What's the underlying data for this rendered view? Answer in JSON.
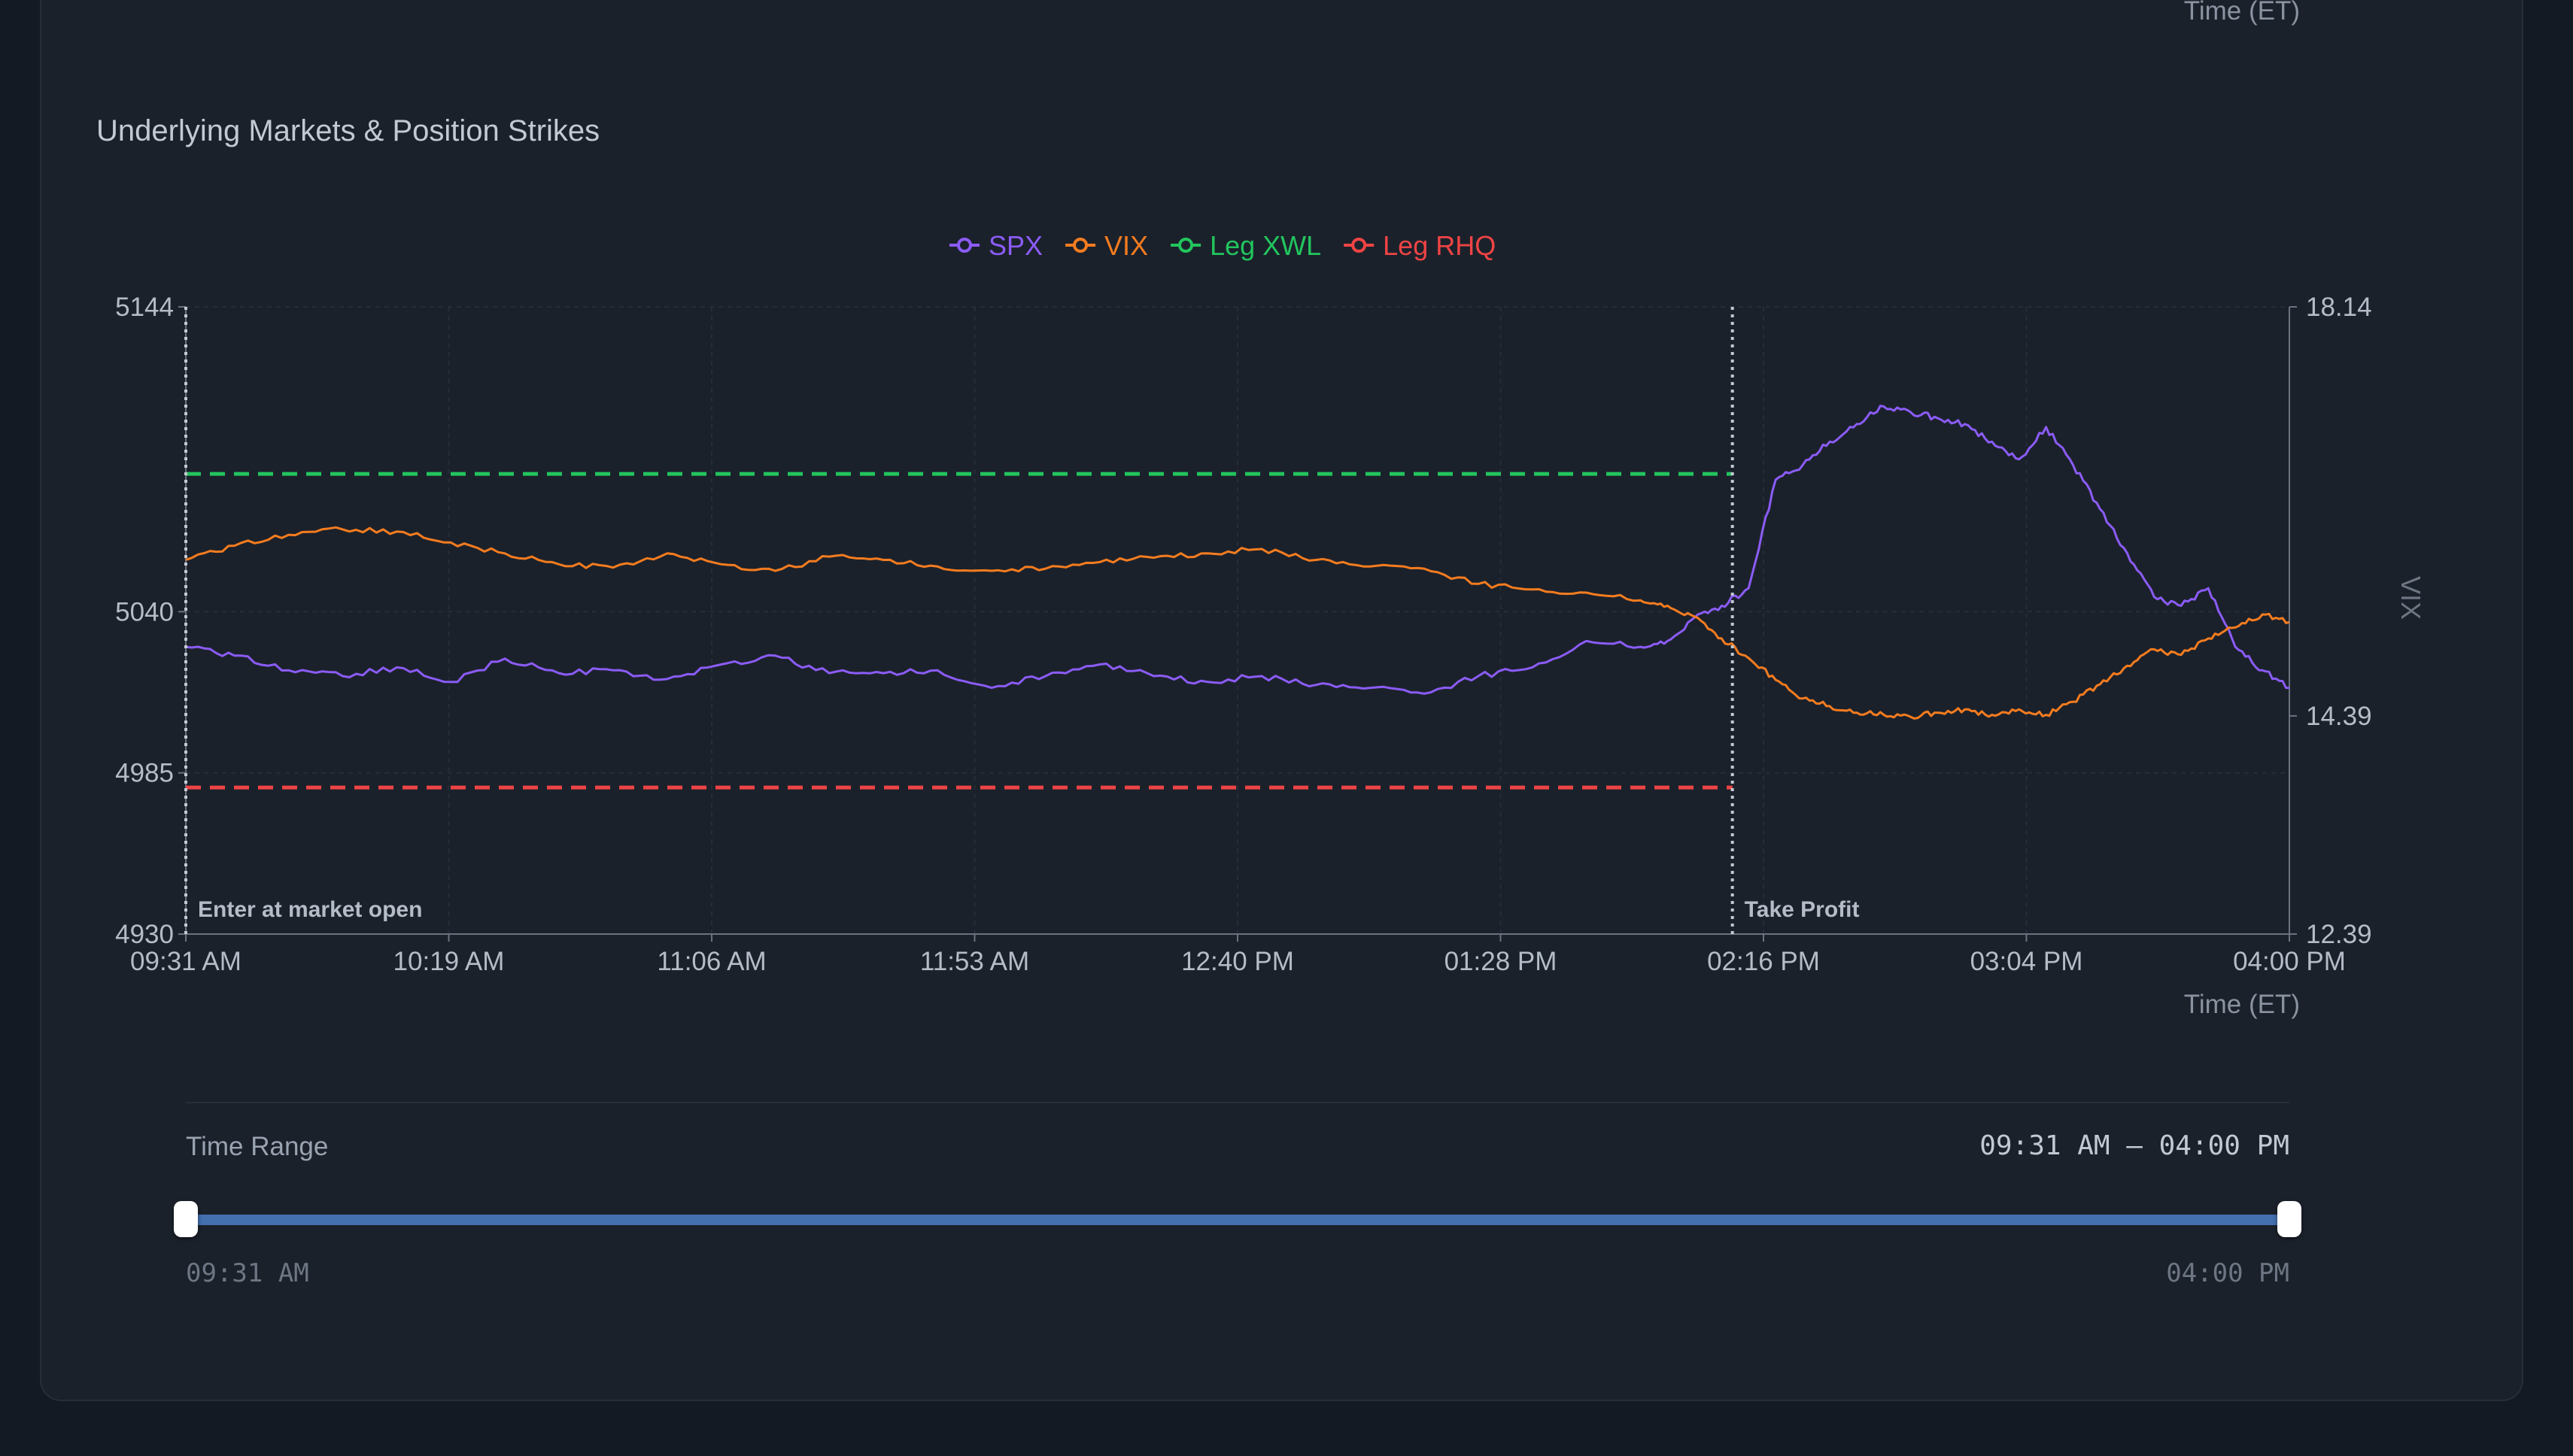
{
  "top_partial_axis_label": "Time (ET)",
  "chart_data": {
    "type": "line",
    "title": "Underlying Markets & Position Strikes",
    "xlabel": "Time (ET)",
    "ylabel_left": "",
    "ylabel_right": "VIX",
    "x_ticks": [
      "09:31 AM",
      "10:19 AM",
      "11:06 AM",
      "11:53 AM",
      "12:40 PM",
      "01:28 PM",
      "02:16 PM",
      "03:04 PM",
      "04:00 PM"
    ],
    "x_range_minutes": [
      571,
      960
    ],
    "y_left": {
      "ticks": [
        5144,
        5040,
        4985,
        4930
      ],
      "range": [
        4930,
        5144
      ]
    },
    "y_right": {
      "ticks": [
        18.14,
        14.39,
        12.39
      ],
      "range": [
        12.39,
        18.14
      ]
    },
    "legend": [
      {
        "name": "SPX",
        "color": "#8b5cf6"
      },
      {
        "name": "VIX",
        "color": "#f57c1f"
      },
      {
        "name": "Leg XWL",
        "color": "#22c55e"
      },
      {
        "name": "Leg RHQ",
        "color": "#ef4444"
      }
    ],
    "series": [
      {
        "name": "SPX",
        "axis": "left",
        "color": "#8b5cf6",
        "x": [
          571,
          580,
          590,
          600,
          610,
          620,
          630,
          640,
          650,
          660,
          670,
          680,
          690,
          700,
          710,
          720,
          730,
          740,
          750,
          760,
          770,
          780,
          790,
          800,
          810,
          820,
          830,
          840,
          845,
          850,
          855,
          860,
          865,
          870,
          875,
          880,
          885,
          890,
          895,
          900,
          905,
          910,
          915,
          920,
          925,
          930,
          935,
          940,
          945,
          950,
          955,
          960
        ],
        "values": [
          5028,
          5025,
          5020,
          5018,
          5021,
          5016,
          5024,
          5019,
          5020,
          5017,
          5022,
          5025,
          5019,
          5019,
          5020,
          5014,
          5018,
          5022,
          5018,
          5016,
          5018,
          5015,
          5014,
          5012,
          5018,
          5021,
          5030,
          5028,
          5030,
          5038,
          5042,
          5048,
          5085,
          5090,
          5098,
          5104,
          5110,
          5108,
          5106,
          5104,
          5098,
          5092,
          5103,
          5090,
          5075,
          5060,
          5045,
          5042,
          5048,
          5028,
          5020,
          5014
        ]
      },
      {
        "name": "VIX",
        "axis": "right",
        "color": "#f57c1f",
        "x": [
          571,
          580,
          590,
          600,
          610,
          620,
          630,
          640,
          650,
          660,
          670,
          680,
          690,
          700,
          710,
          720,
          730,
          740,
          750,
          760,
          770,
          780,
          790,
          800,
          810,
          820,
          830,
          840,
          845,
          850,
          855,
          860,
          865,
          870,
          875,
          880,
          885,
          890,
          895,
          900,
          905,
          910,
          915,
          920,
          925,
          930,
          935,
          940,
          945,
          950,
          955,
          960
        ],
        "values": [
          15.82,
          15.95,
          16.05,
          16.1,
          16.08,
          15.98,
          15.88,
          15.78,
          15.75,
          15.88,
          15.78,
          15.72,
          15.85,
          15.82,
          15.76,
          15.72,
          15.74,
          15.8,
          15.84,
          15.88,
          15.92,
          15.82,
          15.76,
          15.74,
          15.6,
          15.55,
          15.52,
          15.45,
          15.4,
          15.3,
          15.1,
          14.92,
          14.72,
          14.55,
          14.48,
          14.42,
          14.4,
          14.38,
          14.42,
          14.45,
          14.4,
          14.45,
          14.4,
          14.52,
          14.68,
          14.85,
          15.0,
          14.95,
          15.1,
          15.2,
          15.32,
          15.25
        ]
      },
      {
        "name": "Leg XWL",
        "axis": "left",
        "color": "#22c55e",
        "style": "dashed",
        "x": [
          571,
          857
        ],
        "values": [
          5087,
          5087
        ]
      },
      {
        "name": "Leg RHQ",
        "axis": "left",
        "color": "#ef4444",
        "style": "dashed",
        "x": [
          571,
          857
        ],
        "values": [
          4980,
          4980
        ]
      }
    ],
    "markers": [
      {
        "x": 571,
        "label": "Enter at market open"
      },
      {
        "x": 857,
        "label": "Take Profit"
      }
    ],
    "grid": true,
    "legend_position": "top-center"
  },
  "time_range": {
    "label": "Time Range",
    "value": "09:31 AM – 04:00 PM",
    "min_label": "09:31 AM",
    "max_label": "04:00 PM",
    "selected_start_fraction": 0,
    "selected_end_fraction": 1
  }
}
